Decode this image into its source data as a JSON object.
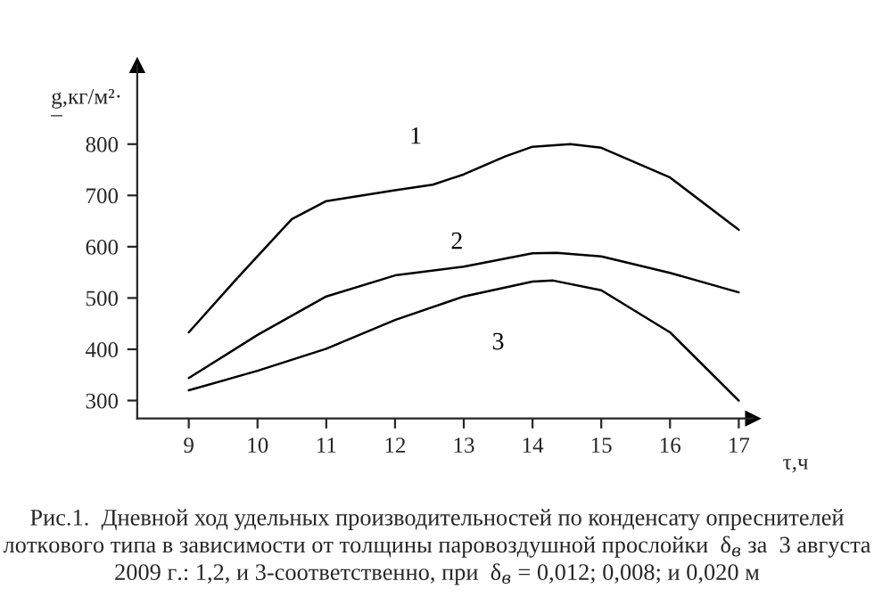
{
  "chart_data": {
    "type": "line",
    "ylabel": "g,кг/м²·\n–",
    "xlabel": "τ,ч",
    "series": [
      {
        "name": "1",
        "color": "#000000",
        "x": [
          9,
          9.7,
          10.5,
          11,
          12,
          12.55,
          13,
          13.6,
          14,
          14.55,
          15,
          16,
          17
        ],
        "values": [
          433,
          538,
          654,
          689,
          710,
          721,
          741,
          776,
          795,
          800,
          793,
          735,
          633
        ]
      },
      {
        "name": "2",
        "color": "#000000",
        "x": [
          9,
          10,
          11,
          12,
          13,
          14,
          14.35,
          15,
          16,
          17
        ],
        "values": [
          344,
          428,
          503,
          544,
          561,
          587,
          588,
          581,
          549,
          511
        ]
      },
      {
        "name": "3",
        "color": "#000000",
        "x": [
          9,
          10,
          11,
          12,
          13,
          14,
          14.3,
          15,
          16,
          17
        ],
        "values": [
          320,
          358,
          401,
          457,
          503,
          532,
          534,
          515,
          433,
          300
        ]
      }
    ],
    "annotations": [
      "Рис.1.  Дневной ход удельных производительностей по конденсату опреснителей\nлоткового типа в зависимости от толщины паровоздушной прослойки  δ$_{в}$ за  3 августа\n2009 г.: 1,2, и 3-соответственно, при  δ$_{в}$ = 0,012; 0,008; и 0,020 м"
    ],
    "xlim": [
      8.25,
      17.2
    ],
    "xticks": [
      9,
      10,
      11,
      12,
      13,
      14,
      15,
      16,
      17
    ],
    "ylim": [
      265,
      953
    ],
    "yticks": [
      300,
      400,
      500,
      600,
      700,
      800
    ],
    "grid": false,
    "legend": false,
    "marker": "none",
    "line_style": "solid"
  }
}
